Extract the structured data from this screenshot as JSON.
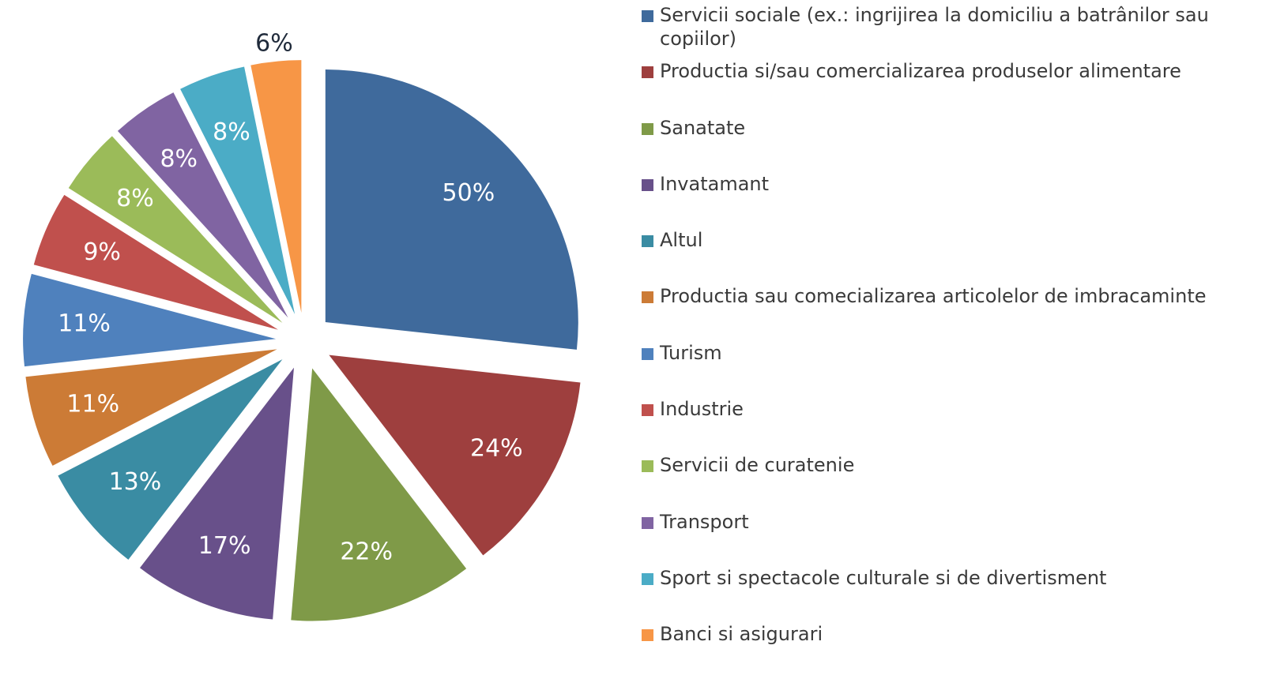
{
  "chart_data": {
    "type": "pie",
    "categories": [
      "Servicii sociale (ex.: ingrijirea la domiciliu a batrânilor sau copiilor)",
      "Productia si/sau comercializarea produselor alimentare",
      "Sanatate",
      "Invatamant",
      "Altul",
      "Productia sau comecializarea articolelor de imbracaminte",
      "Turism",
      "Industrie",
      "Servicii de curatenie",
      "Transport",
      "Sport si spectacole culturale si de divertisment",
      "Banci si asigurari"
    ],
    "values": [
      50,
      24,
      22,
      17,
      13,
      11,
      11,
      9,
      8,
      8,
      8,
      6
    ],
    "value_labels": [
      "50%",
      "24%",
      "22%",
      "17%",
      "13%",
      "11%",
      "11%",
      "9%",
      "8%",
      "8%",
      "8%",
      "6%"
    ],
    "colors": [
      "#3F6A9C",
      "#9E3F3E",
      "#7F9A48",
      "#68508A",
      "#3A8CA3",
      "#CC7B36",
      "#4F81BD",
      "#C0504D",
      "#9BBB59",
      "#8064A2",
      "#4BACC6",
      "#F79646"
    ],
    "legend": "right"
  }
}
